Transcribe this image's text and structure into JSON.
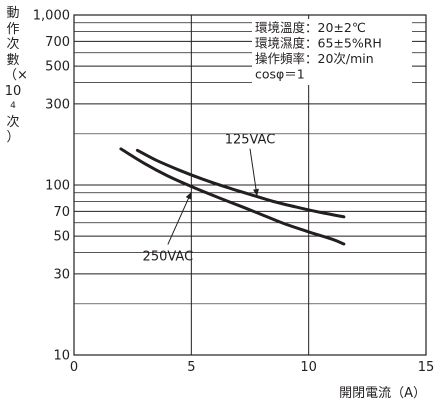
{
  "chart_data": {
    "type": "line",
    "title": "",
    "xlabel": "開閉電流（A）",
    "ylabel": [
      "動",
      "作",
      "次",
      "數",
      "（×",
      "10",
      "4",
      "次",
      "）"
    ],
    "xlim": [
      0,
      15
    ],
    "ylim": [
      10,
      1000
    ],
    "yscale": "log",
    "x_ticks": [
      0,
      5,
      10,
      15
    ],
    "x_tick_labels": [
      "0",
      "5",
      "10",
      "15"
    ],
    "y_ticks": [
      1000,
      700,
      500,
      300,
      100,
      70,
      50,
      30,
      10
    ],
    "y_tick_labels": [
      "1,000",
      "700",
      "500",
      "300",
      "100",
      "70",
      "50",
      "30",
      "10"
    ],
    "minor_y_gridlines": [
      900,
      800,
      600,
      400,
      200,
      90,
      80,
      60,
      40,
      20
    ],
    "conditions": [
      "環境溫度：20±2℃",
      "環境濕度：65±5%RH",
      "操作頻率：20次/min",
      "cosφ＝1"
    ],
    "series": [
      {
        "name": "125VAC",
        "x": [
          2.7,
          3.5,
          4.5,
          5.5,
          6.5,
          7.5,
          8.5,
          9.5,
          10.5,
          11.5
        ],
        "y": [
          160,
          140,
          122,
          108,
          97,
          88,
          80,
          74,
          69,
          65
        ]
      },
      {
        "name": "250VAC",
        "x": [
          2.0,
          3.0,
          4.0,
          5.0,
          6.0,
          7.0,
          8.0,
          9.0,
          10.0,
          11.0,
          11.5
        ],
        "y": [
          163,
          134,
          113,
          98,
          86,
          76,
          67,
          59,
          53,
          48,
          45
        ]
      }
    ],
    "annotations": [
      {
        "label": "125VAC",
        "series": "125VAC",
        "text_x": 7.5,
        "text_y": 175,
        "arrow_x": 7.8,
        "arrow_y": 86
      },
      {
        "label": "250VAC",
        "series": "250VAC",
        "text_x": 4.0,
        "text_y": 36,
        "arrow_x": 5.0,
        "arrow_y": 91
      }
    ],
    "grid": true,
    "legend": "none"
  }
}
